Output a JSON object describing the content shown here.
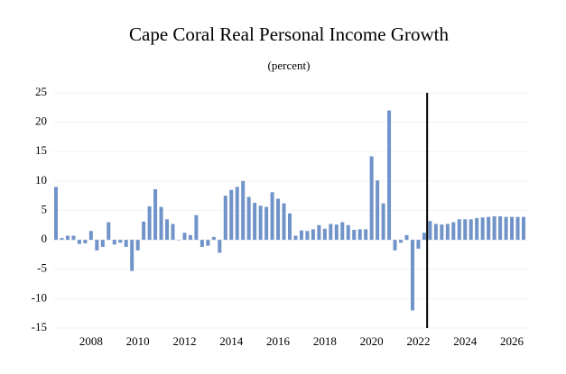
{
  "chart_data": {
    "type": "bar",
    "title": "Cape Coral Real Personal Income Growth",
    "subtitle": "(percent)",
    "categories": [
      null,
      null,
      null,
      null,
      null,
      null,
      "2008",
      null,
      null,
      null,
      null,
      null,
      null,
      null,
      "2010",
      null,
      null,
      null,
      null,
      null,
      null,
      null,
      "2012",
      null,
      null,
      null,
      null,
      null,
      null,
      null,
      "2014",
      null,
      null,
      null,
      null,
      null,
      null,
      null,
      "2016",
      null,
      null,
      null,
      null,
      null,
      null,
      null,
      "2018",
      null,
      null,
      null,
      null,
      null,
      null,
      null,
      "2020",
      null,
      null,
      null,
      null,
      null,
      null,
      null,
      "2022",
      null,
      null,
      null,
      null,
      null,
      null,
      null,
      "2024",
      null,
      null,
      null,
      null,
      null,
      null,
      null,
      "2026",
      null,
      null
    ],
    "values": [
      9.0,
      0.3,
      0.7,
      0.7,
      -0.7,
      -0.6,
      1.5,
      -1.8,
      -1.2,
      3.0,
      -0.8,
      -0.5,
      -1.2,
      -5.3,
      -1.8,
      3.1,
      5.7,
      8.6,
      5.6,
      3.5,
      2.7,
      0.0,
      1.2,
      0.8,
      4.2,
      -1.2,
      -1.0,
      0.5,
      -2.2,
      7.5,
      8.5,
      9.0,
      10.0,
      7.3,
      6.3,
      5.8,
      5.6,
      8.1,
      7.0,
      6.2,
      4.5,
      0.7,
      1.6,
      1.5,
      1.8,
      2.5,
      1.9,
      2.7,
      2.6,
      3.0,
      2.5,
      1.7,
      1.8,
      1.8,
      14.2,
      10.1,
      6.2,
      22.0,
      -1.8,
      -0.5,
      0.8,
      -12.0,
      -1.5,
      1.2,
      3.2,
      2.7,
      2.6,
      2.7,
      3.0,
      3.5,
      3.5,
      3.5,
      3.7,
      3.8,
      3.9,
      4.0,
      4.0,
      3.9,
      3.9,
      3.9,
      3.9
    ],
    "color": "#7093c9",
    "ylim": [
      -15,
      25
    ],
    "yticks": [
      -15,
      -10,
      -5,
      0,
      5,
      10,
      15,
      20,
      25
    ],
    "grid": true,
    "forecast_start_index": 64
  }
}
